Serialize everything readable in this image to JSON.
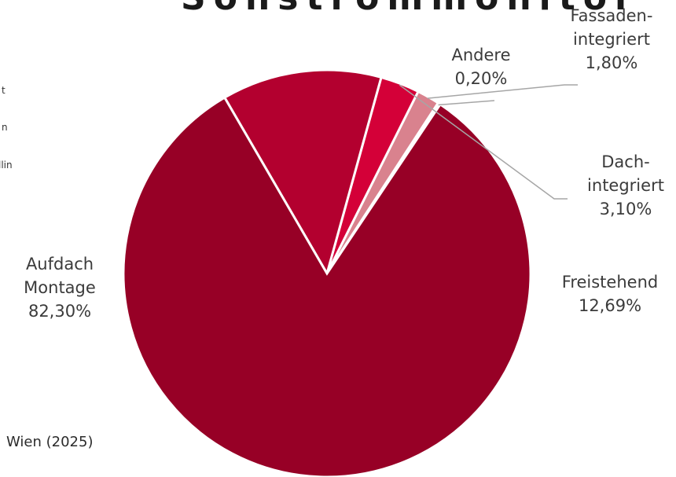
{
  "chart_data": {
    "type": "pie",
    "title": "",
    "categories": [
      "Aufdach Montage",
      "Freistehend",
      "Dach-integriert",
      "Fassaden-integriert",
      "Andere"
    ],
    "values": [
      82.3,
      12.69,
      3.1,
      1.8,
      0.2
    ],
    "unit": "%",
    "labels": [
      {
        "lines": [
          "Aufdach",
          "Montage",
          "82,30%"
        ]
      },
      {
        "lines": [
          "Freistehend",
          "12,69%"
        ]
      },
      {
        "lines": [
          "Dach-",
          "integriert",
          "3,10%"
        ]
      },
      {
        "lines": [
          "Fassaden-",
          "integriert",
          "1,80%"
        ]
      },
      {
        "lines": [
          "Andere",
          "0,20%"
        ]
      }
    ],
    "colors": [
      "#970026",
      "#B3002F",
      "#D40038",
      "#D9828E",
      "#E8E8E8"
    ],
    "legend_visible_fragments": [
      "t",
      "n",
      "llin"
    ],
    "legend_placement": "left (cropped)"
  },
  "title_fragment": "Sonstrommonitor",
  "source_text": "Wien (2025)"
}
